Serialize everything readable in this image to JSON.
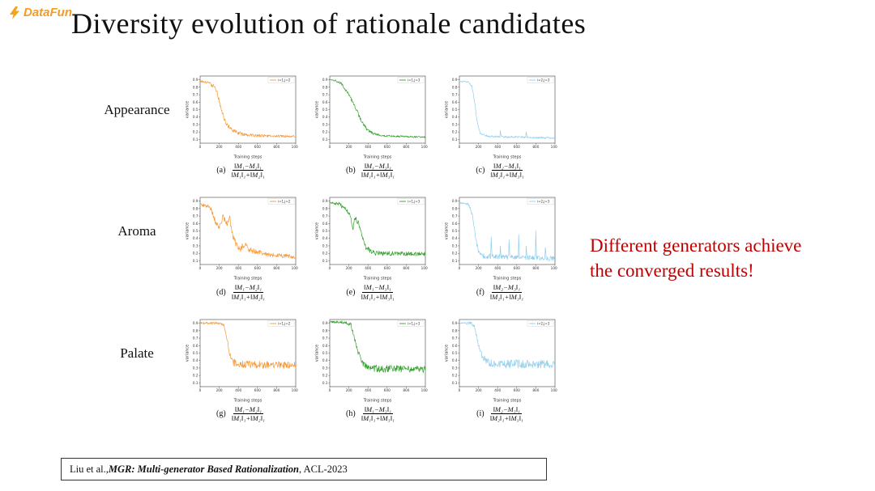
{
  "logo": {
    "text": "DataFun."
  },
  "title": "Diversity evolution of rationale candidates",
  "row_labels": [
    "Appearance",
    "Aroma",
    "Palate"
  ],
  "annotation": {
    "lines": [
      "Different generators achieve",
      "the converged results!"
    ],
    "color": "#C00000"
  },
  "citation": {
    "pre": "Liu et al., ",
    "emph": "MGR: Multi-generator Based Rationalization",
    "post": ", ACL-2023"
  },
  "colors": {
    "orange": "#F79836",
    "green": "#33A02C",
    "blue": "#92CFEC"
  },
  "chart_defaults": {
    "type": "line",
    "xlabel": "Training steps",
    "ylabel": "variance",
    "xlim": [
      0,
      1000
    ],
    "ylim": [
      0.05,
      0.95
    ],
    "xticks": [
      0,
      200,
      400,
      600,
      800,
      1000
    ],
    "yticks": [
      0.1,
      0.2,
      0.3,
      0.4,
      0.5,
      0.6,
      0.7,
      0.8,
      0.9
    ],
    "grid": false,
    "legend_position": "top-right"
  },
  "chart_data": [
    {
      "id": "a",
      "row": "Appearance",
      "legend": "i=1,j=2",
      "color": "#F79836",
      "caption": {
        "label": "(a)",
        "numerator": "‖M₁−M₂‖₁",
        "denominator": "‖M₁‖₁+‖M₂‖₁"
      },
      "keypoints": [
        [
          0,
          0.88
        ],
        [
          80,
          0.86
        ],
        [
          140,
          0.82
        ],
        [
          180,
          0.72
        ],
        [
          220,
          0.52
        ],
        [
          260,
          0.35
        ],
        [
          300,
          0.27
        ],
        [
          360,
          0.2
        ],
        [
          450,
          0.17
        ],
        [
          600,
          0.15
        ],
        [
          1000,
          0.14
        ]
      ],
      "noise": [
        [
          0,
          0.012
        ],
        [
          150,
          0.03
        ],
        [
          300,
          0.035
        ],
        [
          500,
          0.02
        ],
        [
          1000,
          0.015
        ]
      ],
      "spikes": []
    },
    {
      "id": "b",
      "row": "Appearance",
      "legend": "i=1,j=3",
      "color": "#33A02C",
      "caption": {
        "label": "(b)",
        "numerator": "‖M₁−M₃‖₁",
        "denominator": "‖M₁‖₁+‖M₃‖₁"
      },
      "keypoints": [
        [
          0,
          0.9
        ],
        [
          60,
          0.89
        ],
        [
          120,
          0.85
        ],
        [
          200,
          0.7
        ],
        [
          260,
          0.55
        ],
        [
          320,
          0.38
        ],
        [
          380,
          0.25
        ],
        [
          450,
          0.18
        ],
        [
          550,
          0.15
        ],
        [
          1000,
          0.13
        ]
      ],
      "noise": [
        [
          0,
          0.008
        ],
        [
          200,
          0.02
        ],
        [
          350,
          0.025
        ],
        [
          600,
          0.012
        ],
        [
          1000,
          0.01
        ]
      ],
      "spikes": []
    },
    {
      "id": "c",
      "row": "Appearance",
      "legend": "i=2,j=3",
      "color": "#92CFEC",
      "caption": {
        "label": "(c)",
        "numerator": "‖M₂−M₃‖₁",
        "denominator": "‖M₂‖₁+‖M₃‖₁"
      },
      "keypoints": [
        [
          0,
          0.88
        ],
        [
          90,
          0.87
        ],
        [
          130,
          0.82
        ],
        [
          160,
          0.6
        ],
        [
          190,
          0.3
        ],
        [
          220,
          0.18
        ],
        [
          300,
          0.14
        ],
        [
          1000,
          0.12
        ]
      ],
      "noise": [
        [
          0,
          0.008
        ],
        [
          200,
          0.015
        ],
        [
          1000,
          0.012
        ]
      ],
      "spikes": [
        [
          430,
          0.22
        ],
        [
          700,
          0.2
        ]
      ]
    },
    {
      "id": "d",
      "row": "Aroma",
      "legend": "i=1,j=2",
      "color": "#F79836",
      "caption": {
        "label": "(d)",
        "numerator": "‖M₁−M₂‖₁",
        "denominator": "‖M₁‖₁+‖M₂‖₁"
      },
      "keypoints": [
        [
          0,
          0.85
        ],
        [
          60,
          0.84
        ],
        [
          120,
          0.78
        ],
        [
          160,
          0.62
        ],
        [
          200,
          0.55
        ],
        [
          240,
          0.68
        ],
        [
          280,
          0.6
        ],
        [
          310,
          0.67
        ],
        [
          340,
          0.45
        ],
        [
          380,
          0.3
        ],
        [
          420,
          0.26
        ],
        [
          470,
          0.33
        ],
        [
          520,
          0.24
        ],
        [
          600,
          0.22
        ],
        [
          700,
          0.18
        ],
        [
          850,
          0.17
        ],
        [
          1000,
          0.15
        ]
      ],
      "noise": [
        [
          0,
          0.02
        ],
        [
          150,
          0.04
        ],
        [
          350,
          0.05
        ],
        [
          600,
          0.03
        ],
        [
          1000,
          0.025
        ]
      ],
      "spikes": []
    },
    {
      "id": "e",
      "row": "Aroma",
      "legend": "i=1,j=3",
      "color": "#33A02C",
      "caption": {
        "label": "(e)",
        "numerator": "‖M₁−M₃‖₁",
        "denominator": "‖M₁‖₁+‖M₃‖₁"
      },
      "keypoints": [
        [
          0,
          0.88
        ],
        [
          100,
          0.86
        ],
        [
          160,
          0.8
        ],
        [
          210,
          0.72
        ],
        [
          240,
          0.52
        ],
        [
          265,
          0.68
        ],
        [
          300,
          0.6
        ],
        [
          340,
          0.42
        ],
        [
          380,
          0.28
        ],
        [
          430,
          0.22
        ],
        [
          500,
          0.2
        ],
        [
          1000,
          0.19
        ]
      ],
      "noise": [
        [
          0,
          0.012
        ],
        [
          200,
          0.035
        ],
        [
          400,
          0.035
        ],
        [
          1000,
          0.025
        ]
      ],
      "spikes": []
    },
    {
      "id": "f",
      "row": "Aroma",
      "legend": "i=2,j=3",
      "color": "#92CFEC",
      "caption": {
        "label": "(f)",
        "numerator": "‖M₂−M₃‖₁",
        "denominator": "‖M₂‖₁+‖M₃‖₁"
      },
      "keypoints": [
        [
          0,
          0.88
        ],
        [
          100,
          0.85
        ],
        [
          140,
          0.7
        ],
        [
          170,
          0.4
        ],
        [
          200,
          0.22
        ],
        [
          260,
          0.16
        ],
        [
          1000,
          0.13
        ]
      ],
      "noise": [
        [
          0,
          0.012
        ],
        [
          180,
          0.03
        ],
        [
          300,
          0.035
        ],
        [
          1000,
          0.03
        ]
      ],
      "spikes": [
        [
          330,
          0.42
        ],
        [
          430,
          0.3
        ],
        [
          520,
          0.38
        ],
        [
          620,
          0.45
        ],
        [
          700,
          0.3
        ],
        [
          800,
          0.5
        ],
        [
          900,
          0.28
        ]
      ]
    },
    {
      "id": "g",
      "row": "Palate",
      "legend": "i=1,j=2",
      "color": "#F79836",
      "caption": {
        "label": "(g)",
        "numerator": "‖M₁−M₂‖₁",
        "denominator": "‖M₁‖₁+‖M₂‖₁"
      },
      "keypoints": [
        [
          0,
          0.9
        ],
        [
          100,
          0.9
        ],
        [
          200,
          0.9
        ],
        [
          250,
          0.88
        ],
        [
          280,
          0.7
        ],
        [
          310,
          0.48
        ],
        [
          340,
          0.38
        ],
        [
          400,
          0.35
        ],
        [
          1000,
          0.34
        ]
      ],
      "noise": [
        [
          0,
          0.012
        ],
        [
          250,
          0.02
        ],
        [
          350,
          0.05
        ],
        [
          1000,
          0.05
        ]
      ],
      "spikes": []
    },
    {
      "id": "h",
      "row": "Palate",
      "legend": "i=1,j=3",
      "color": "#33A02C",
      "caption": {
        "label": "(h)",
        "numerator": "‖M₁−M₃‖₁",
        "denominator": "‖M₁‖₁+‖M₃‖₁"
      },
      "keypoints": [
        [
          0,
          0.92
        ],
        [
          150,
          0.91
        ],
        [
          220,
          0.88
        ],
        [
          260,
          0.7
        ],
        [
          300,
          0.5
        ],
        [
          340,
          0.36
        ],
        [
          400,
          0.3
        ],
        [
          500,
          0.29
        ],
        [
          1000,
          0.28
        ]
      ],
      "noise": [
        [
          0,
          0.01
        ],
        [
          250,
          0.03
        ],
        [
          400,
          0.05
        ],
        [
          1000,
          0.045
        ]
      ],
      "spikes": []
    },
    {
      "id": "i",
      "row": "Palate",
      "legend": "i=2,j=3",
      "color": "#92CFEC",
      "caption": {
        "label": "(i)",
        "numerator": "‖M₂−M₃‖₁",
        "denominator": "‖M₂‖₁+‖M₃‖₁"
      },
      "keypoints": [
        [
          0,
          0.9
        ],
        [
          120,
          0.9
        ],
        [
          160,
          0.85
        ],
        [
          200,
          0.6
        ],
        [
          240,
          0.45
        ],
        [
          300,
          0.38
        ],
        [
          400,
          0.36
        ],
        [
          1000,
          0.35
        ]
      ],
      "noise": [
        [
          0,
          0.012
        ],
        [
          200,
          0.03
        ],
        [
          350,
          0.06
        ],
        [
          1000,
          0.055
        ]
      ],
      "spikes": []
    }
  ]
}
